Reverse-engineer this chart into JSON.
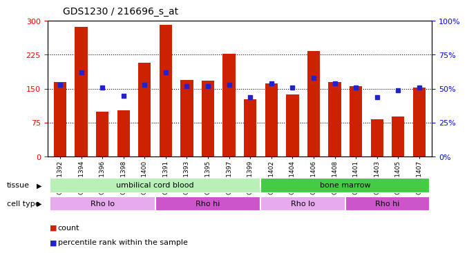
{
  "title": "GDS1230 / 216696_s_at",
  "samples": [
    "GSM51392",
    "GSM51394",
    "GSM51396",
    "GSM51398",
    "GSM51400",
    "GSM51391",
    "GSM51393",
    "GSM51395",
    "GSM51397",
    "GSM51399",
    "GSM51402",
    "GSM51404",
    "GSM51406",
    "GSM51408",
    "GSM51401",
    "GSM51403",
    "GSM51405",
    "GSM51407"
  ],
  "counts": [
    165,
    287,
    100,
    103,
    207,
    292,
    170,
    168,
    227,
    127,
    162,
    138,
    233,
    165,
    155,
    82,
    88,
    152
  ],
  "percentiles": [
    53,
    62,
    51,
    45,
    53,
    62,
    52,
    52,
    53,
    44,
    54,
    51,
    58,
    54,
    51,
    44,
    49,
    51
  ],
  "tissue_groups": [
    {
      "label": "umbilical cord blood",
      "start": 0,
      "end": 9,
      "color": "#b8f0b8"
    },
    {
      "label": "bone marrow",
      "start": 10,
      "end": 17,
      "color": "#44cc44"
    }
  ],
  "cell_type_groups": [
    {
      "label": "Rho lo",
      "start": 0,
      "end": 4,
      "color": "#e8aaee"
    },
    {
      "label": "Rho hi",
      "start": 5,
      "end": 9,
      "color": "#cc55cc"
    },
    {
      "label": "Rho lo",
      "start": 10,
      "end": 13,
      "color": "#e8aaee"
    },
    {
      "label": "Rho hi",
      "start": 14,
      "end": 17,
      "color": "#cc55cc"
    }
  ],
  "bar_color": "#cc2200",
  "dot_color": "#2222cc",
  "left_ylim": [
    0,
    300
  ],
  "right_ylim": [
    0,
    100
  ],
  "left_yticks": [
    0,
    75,
    150,
    225,
    300
  ],
  "right_yticks": [
    0,
    25,
    50,
    75,
    100
  ],
  "right_yticklabels": [
    "0%",
    "25%",
    "50%",
    "75%",
    "100%"
  ],
  "grid_values": [
    75,
    150,
    225
  ],
  "title_fontsize": 10,
  "legend_items": [
    {
      "color": "#cc2200",
      "label": "count"
    },
    {
      "color": "#2222cc",
      "label": "percentile rank within the sample"
    }
  ]
}
